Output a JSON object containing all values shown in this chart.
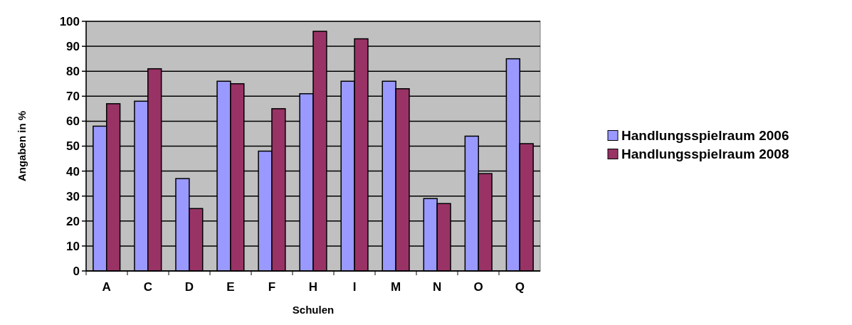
{
  "chart_data": {
    "type": "bar",
    "xlabel": "Schulen",
    "ylabel": "Angaben in %",
    "categories": [
      "A",
      "C",
      "D",
      "E",
      "F",
      "H",
      "I",
      "M",
      "N",
      "O",
      "Q"
    ],
    "series": [
      {
        "name": "Handlungsspielraum 2006",
        "color": "#9999ff",
        "values": [
          58,
          68,
          37,
          76,
          48,
          71,
          76,
          76,
          29,
          54,
          85
        ]
      },
      {
        "name": "Handlungsspielraum 2008",
        "color": "#993366",
        "values": [
          67,
          81,
          25,
          75,
          65,
          96,
          93,
          73,
          27,
          39,
          51
        ]
      }
    ],
    "ylim": [
      0,
      100
    ],
    "yticks": [
      0,
      10,
      20,
      30,
      40,
      50,
      60,
      70,
      80,
      90,
      100
    ],
    "grid": "y",
    "legend": "right"
  }
}
